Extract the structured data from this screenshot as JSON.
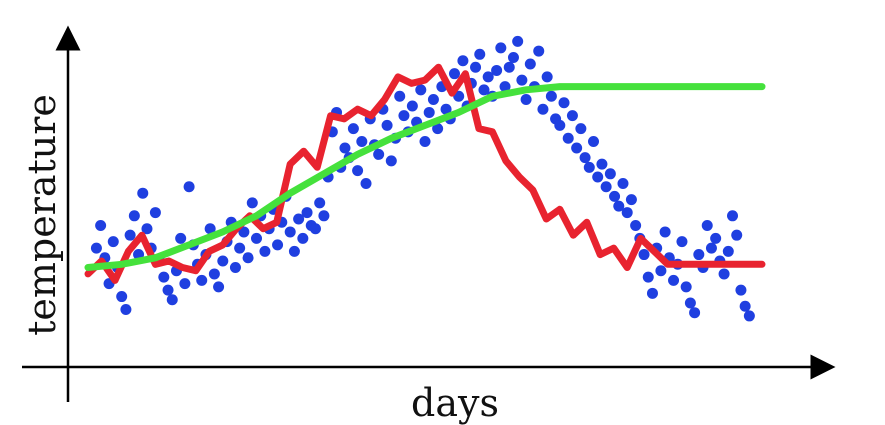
{
  "chart_data": {
    "type": "scatter",
    "title": "",
    "xlabel": "days",
    "ylabel": "temperature",
    "xlim": [
      0,
      100
    ],
    "ylim": [
      0,
      100
    ],
    "grid": false,
    "legend": "none",
    "scatter_color": "#1f3fe0",
    "series": [
      {
        "type": "line",
        "color": "#e8232f",
        "x": [
          0,
          2,
          4,
          6,
          8,
          10,
          12,
          14,
          16,
          18,
          20,
          22,
          24,
          26,
          28,
          30,
          32,
          34,
          36,
          38,
          40,
          42,
          44,
          46,
          48,
          50,
          52,
          54,
          56,
          58,
          60,
          62,
          64,
          66,
          68,
          70,
          72,
          74,
          76,
          78,
          80,
          82,
          84,
          86,
          88,
          90,
          92,
          94,
          96,
          98,
          100
        ],
        "y": [
          22,
          26,
          20,
          29,
          34,
          25,
          26,
          24,
          23,
          29,
          31,
          36,
          40,
          36,
          38,
          56,
          60,
          55,
          71,
          70,
          73,
          71,
          76,
          83,
          81,
          82,
          86,
          78,
          84,
          67,
          66,
          57,
          52,
          48,
          39,
          42,
          34,
          38,
          28,
          30,
          24,
          33,
          29,
          25,
          25,
          25,
          25,
          25,
          25,
          25,
          25
        ]
      },
      {
        "type": "line",
        "color": "#45e13c",
        "x": [
          0,
          5,
          10,
          15,
          20,
          25,
          30,
          35,
          40,
          45,
          50,
          55,
          60,
          65,
          70,
          75,
          80,
          85,
          90,
          95,
          100
        ],
        "y": [
          24,
          25,
          27,
          31,
          35,
          40,
          47,
          53,
          59,
          64,
          68,
          72,
          77,
          79,
          80,
          80,
          80,
          80,
          80,
          80,
          80
        ]
      }
    ],
    "points": [
      [
        1,
        30
      ],
      [
        1.5,
        37
      ],
      [
        2,
        27
      ],
      [
        2.5,
        19
      ],
      [
        3,
        32
      ],
      [
        3.5,
        24
      ],
      [
        4,
        15
      ],
      [
        4.5,
        11
      ],
      [
        5,
        34
      ],
      [
        5.5,
        40
      ],
      [
        6,
        28
      ],
      [
        6.5,
        47
      ],
      [
        7,
        36
      ],
      [
        7.5,
        30
      ],
      [
        8,
        41
      ],
      [
        8.5,
        26
      ],
      [
        9,
        21
      ],
      [
        9.5,
        17
      ],
      [
        10,
        14
      ],
      [
        10.5,
        23
      ],
      [
        11,
        33
      ],
      [
        11.5,
        19
      ],
      [
        12,
        49
      ],
      [
        12.5,
        31
      ],
      [
        13,
        25
      ],
      [
        13.5,
        20
      ],
      [
        14,
        28
      ],
      [
        14.5,
        36
      ],
      [
        15,
        22
      ],
      [
        15.5,
        18
      ],
      [
        16,
        26
      ],
      [
        16.5,
        32
      ],
      [
        17,
        38
      ],
      [
        17.5,
        24
      ],
      [
        18,
        30
      ],
      [
        18.5,
        35
      ],
      [
        19,
        27
      ],
      [
        19.5,
        44
      ],
      [
        20,
        33
      ],
      [
        20.5,
        40
      ],
      [
        21,
        29
      ],
      [
        21.5,
        36
      ],
      [
        22,
        42
      ],
      [
        22.5,
        31
      ],
      [
        23,
        38
      ],
      [
        23.5,
        46
      ],
      [
        24,
        35
      ],
      [
        24.5,
        29
      ],
      [
        25,
        39
      ],
      [
        25.5,
        33
      ],
      [
        26,
        41
      ],
      [
        26.5,
        37
      ],
      [
        27,
        36
      ],
      [
        27.5,
        44
      ],
      [
        28,
        40
      ],
      [
        28.5,
        52
      ],
      [
        29,
        66
      ],
      [
        29.5,
        72
      ],
      [
        30,
        55
      ],
      [
        30.5,
        61
      ],
      [
        31,
        58
      ],
      [
        31.5,
        67
      ],
      [
        32,
        54
      ],
      [
        32.5,
        63
      ],
      [
        33,
        50
      ],
      [
        33.5,
        70
      ],
      [
        34,
        62
      ],
      [
        34.5,
        59
      ],
      [
        35,
        73
      ],
      [
        35.5,
        68
      ],
      [
        36,
        57
      ],
      [
        36.5,
        64
      ],
      [
        37,
        77
      ],
      [
        37.5,
        71
      ],
      [
        38,
        66
      ],
      [
        38.5,
        74
      ],
      [
        39,
        69
      ],
      [
        39.5,
        79
      ],
      [
        40,
        63
      ],
      [
        40.5,
        72
      ],
      [
        41,
        76
      ],
      [
        41.5,
        67
      ],
      [
        42,
        80
      ],
      [
        42.5,
        73
      ],
      [
        43,
        70
      ],
      [
        43.5,
        84
      ],
      [
        44,
        77
      ],
      [
        44.5,
        88
      ],
      [
        45,
        74
      ],
      [
        45.5,
        81
      ],
      [
        46,
        86
      ],
      [
        46.5,
        90
      ],
      [
        47,
        79
      ],
      [
        47.5,
        83
      ],
      [
        48,
        77
      ],
      [
        48.5,
        85
      ],
      [
        49,
        92
      ],
      [
        49.5,
        80
      ],
      [
        50,
        86
      ],
      [
        50.5,
        89
      ],
      [
        51,
        94
      ],
      [
        51.5,
        82
      ],
      [
        52,
        76
      ],
      [
        52.5,
        87
      ],
      [
        53,
        80
      ],
      [
        53.5,
        91
      ],
      [
        54,
        73
      ],
      [
        54.5,
        83
      ],
      [
        55,
        77
      ],
      [
        55.5,
        70
      ],
      [
        56,
        68
      ],
      [
        56.5,
        75
      ],
      [
        57,
        64
      ],
      [
        57.5,
        71
      ],
      [
        58,
        61
      ],
      [
        58.5,
        67
      ],
      [
        59,
        58
      ],
      [
        59.5,
        55
      ],
      [
        60,
        63
      ],
      [
        60.5,
        52
      ],
      [
        61,
        56
      ],
      [
        61.5,
        49
      ],
      [
        62,
        53
      ],
      [
        62.5,
        46
      ],
      [
        63,
        43
      ],
      [
        63.5,
        50
      ],
      [
        64,
        41
      ],
      [
        64.5,
        45
      ],
      [
        65,
        37
      ],
      [
        65.5,
        33
      ],
      [
        66,
        28
      ],
      [
        66.5,
        21
      ],
      [
        67,
        16
      ],
      [
        67.5,
        30
      ],
      [
        68,
        23
      ],
      [
        68.5,
        35
      ],
      [
        69,
        27
      ],
      [
        69.5,
        20
      ],
      [
        70,
        25
      ],
      [
        70.5,
        32
      ],
      [
        71,
        18
      ],
      [
        71.5,
        13
      ],
      [
        72,
        10
      ],
      [
        72.5,
        28
      ],
      [
        73,
        24
      ],
      [
        73.5,
        37
      ],
      [
        74,
        30
      ],
      [
        74.5,
        33
      ],
      [
        75,
        26
      ],
      [
        75.5,
        22
      ],
      [
        76,
        29
      ],
      [
        76.5,
        40
      ],
      [
        77,
        34
      ],
      [
        77.5,
        17
      ],
      [
        78,
        12
      ],
      [
        78.5,
        9
      ]
    ]
  }
}
